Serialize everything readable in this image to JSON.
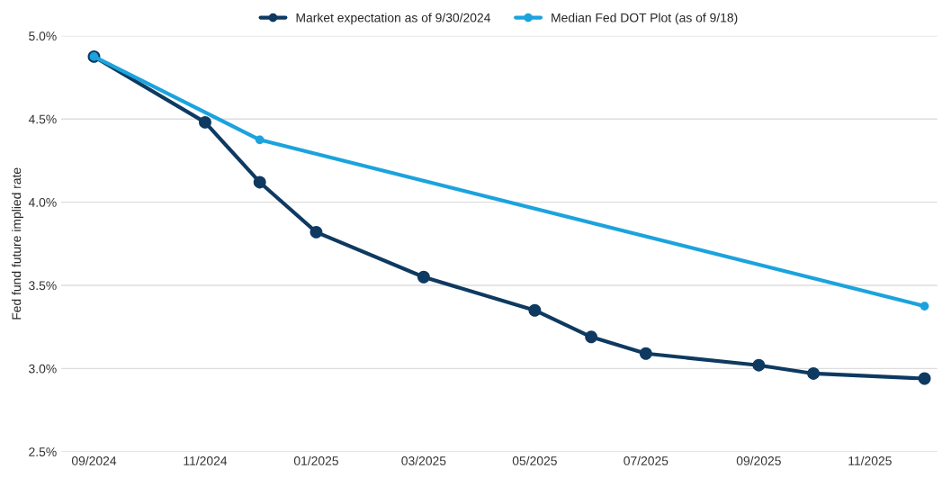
{
  "chart_data": {
    "type": "line",
    "ylabel": "Fed fund future implied rate",
    "series": [
      {
        "name": "Market expectation as of 9/30/2024",
        "color": "#0e3a61",
        "x": [
          "2024-09",
          "2024-11",
          "2024-12",
          "2025-01",
          "2025-03",
          "2025-05",
          "2025-06",
          "2025-07",
          "2025-09",
          "2025-10",
          "2025-12"
        ],
        "values": [
          4.875,
          4.48,
          4.12,
          3.82,
          3.55,
          3.35,
          3.19,
          3.09,
          3.02,
          2.97,
          2.94
        ]
      },
      {
        "name": "Median Fed DOT Plot (as of 9/18)",
        "color": "#1ba3dd",
        "x": [
          "2024-09",
          "2024-12",
          "2025-12"
        ],
        "values": [
          4.875,
          4.375,
          3.375
        ]
      }
    ],
    "xlim": [
      "2024-08-14",
      "2025-12-08"
    ],
    "xticks": [
      {
        "value": "2024-09",
        "label": "09/2024"
      },
      {
        "value": "2024-11",
        "label": "11/2024"
      },
      {
        "value": "2025-01",
        "label": "01/2025"
      },
      {
        "value": "2025-03",
        "label": "03/2025"
      },
      {
        "value": "2025-05",
        "label": "05/2025"
      },
      {
        "value": "2025-07",
        "label": "07/2025"
      },
      {
        "value": "2025-09",
        "label": "09/2025"
      },
      {
        "value": "2025-11",
        "label": "11/2025"
      }
    ],
    "ylim": [
      2.5,
      5.0
    ],
    "yticks": [
      {
        "value": 2.5,
        "label": "2.5%"
      },
      {
        "value": 3.0,
        "label": "3.0%"
      },
      {
        "value": 3.5,
        "label": "3.5%"
      },
      {
        "value": 4.0,
        "label": "4.0%"
      },
      {
        "value": 4.5,
        "label": "4.5%"
      },
      {
        "value": 5.0,
        "label": "5.0%"
      }
    ],
    "grid": "y",
    "legend": "top",
    "marker": "circle",
    "line_style": "solid"
  }
}
